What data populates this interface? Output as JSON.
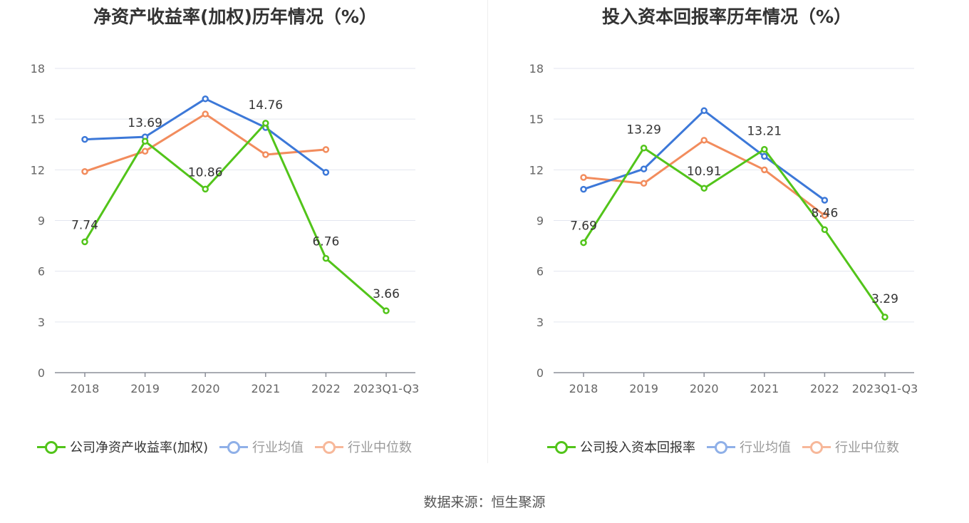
{
  "charts": [
    {
      "title": "净资产收益率(加权)历年情况（%）",
      "chart_data": {
        "type": "line",
        "categories": [
          "2018",
          "2019",
          "2020",
          "2021",
          "2022",
          "2023Q1-Q3"
        ],
        "ylim": [
          0,
          18
        ],
        "yticks": [
          0,
          3,
          6,
          9,
          12,
          15,
          18
        ],
        "grid": true,
        "legend_placement": "bottom",
        "series": [
          {
            "name": "公司净资产收益率(加权)",
            "color": "#52c41a",
            "values": [
              7.74,
              13.69,
              10.86,
              14.76,
              6.76,
              3.66
            ],
            "labels": true
          },
          {
            "name": "行业均值",
            "color": "#3c78d8",
            "values": [
              13.8,
              13.95,
              16.2,
              14.5,
              11.85,
              null
            ],
            "labels": false
          },
          {
            "name": "行业中位数",
            "color": "#f28c5d",
            "values": [
              11.9,
              13.1,
              15.3,
              12.9,
              13.2,
              null
            ],
            "labels": false
          }
        ]
      }
    },
    {
      "title": "投入资本回报率历年情况（%）",
      "chart_data": {
        "type": "line",
        "categories": [
          "2018",
          "2019",
          "2020",
          "2021",
          "2022",
          "2023Q1-Q3"
        ],
        "ylim": [
          0,
          18
        ],
        "yticks": [
          0,
          3,
          6,
          9,
          12,
          15,
          18
        ],
        "grid": true,
        "legend_placement": "bottom",
        "series": [
          {
            "name": "公司投入资本回报率",
            "color": "#52c41a",
            "values": [
              7.69,
              13.29,
              10.91,
              13.21,
              8.46,
              3.29
            ],
            "labels": true
          },
          {
            "name": "行业均值",
            "color": "#3c78d8",
            "values": [
              10.85,
              12.05,
              15.5,
              12.8,
              10.2,
              null
            ],
            "labels": false
          },
          {
            "name": "行业中位数",
            "color": "#f28c5d",
            "values": [
              11.55,
              11.2,
              13.75,
              12.0,
              9.3,
              null
            ],
            "labels": false
          }
        ]
      }
    }
  ],
  "footer": "数据来源：恒生聚源"
}
